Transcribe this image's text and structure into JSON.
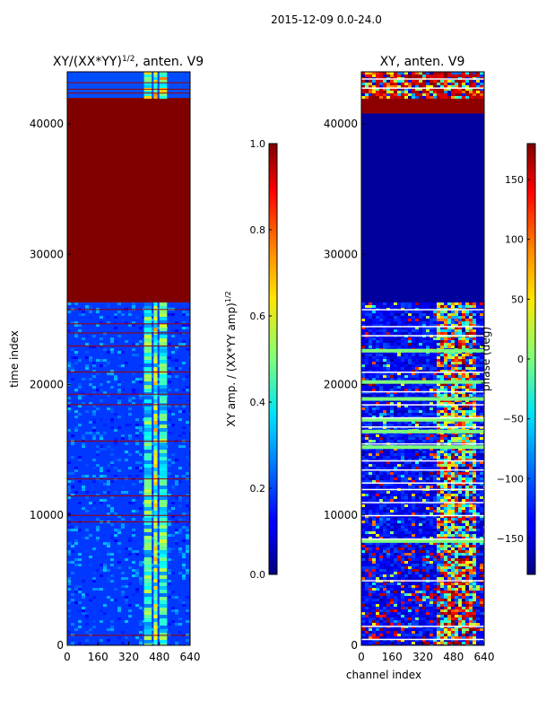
{
  "suptitle": "2015-12-09 0.0-24.0",
  "chart_data": [
    {
      "type": "heatmap",
      "title": "XY/(XX*YY)",
      "title_exponent": "1/2",
      "title_suffix": ", anten. V9",
      "xlabel": "",
      "ylabel": "time index",
      "xlim": [
        0,
        640
      ],
      "ylim": [
        0,
        44000
      ],
      "xticks": [
        0,
        160,
        320,
        480,
        640
      ],
      "yticks": [
        0,
        10000,
        20000,
        30000,
        40000
      ],
      "colormap": "jet",
      "colorbar": {
        "label": "XY amp. / (XX*YY amp)",
        "label_exponent": "1/2",
        "range": [
          0.0,
          1.0
        ],
        "ticks": [
          0.0,
          0.2,
          0.4,
          0.6,
          0.8,
          1.0
        ],
        "tick_labels": [
          "0.0",
          "0.2",
          "0.4",
          "0.6",
          "0.8",
          "1.0"
        ]
      },
      "bands": [
        {
          "y0": 0,
          "y1": 26300,
          "value": 0.18
        },
        {
          "y0": 26300,
          "y1": 42000,
          "value": 1.0
        },
        {
          "y0": 42000,
          "y1": 44000,
          "value": 0.2
        }
      ],
      "bright_channels": [
        [
          400,
          440,
          0.45
        ],
        [
          450,
          470,
          0.55
        ],
        [
          480,
          520,
          0.45
        ]
      ],
      "red_rows": [
        800,
        9500,
        10000,
        11500,
        12800,
        15700,
        18500,
        19300,
        21000,
        23000,
        24000,
        24700,
        25800,
        42400,
        42700,
        43200
      ]
    },
    {
      "type": "heatmap",
      "title": "XY, anten. V9",
      "xlabel": "channel index",
      "ylabel": "",
      "xlim": [
        0,
        640
      ],
      "ylim": [
        0,
        44000
      ],
      "xticks": [
        0,
        160,
        320,
        480,
        640
      ],
      "yticks": [
        0,
        10000,
        20000,
        30000,
        40000
      ],
      "colormap": "jet",
      "colorbar": {
        "label": "phase (deg)",
        "range": [
          -180,
          180
        ],
        "ticks": [
          -150,
          -100,
          -50,
          0,
          50,
          100,
          150
        ],
        "tick_labels": [
          "−150",
          "−100",
          "−50",
          "0",
          "50",
          "100",
          "150"
        ]
      },
      "bands": [
        {
          "y0": 0,
          "y1": 26300,
          "value": -120
        },
        {
          "y0": 26300,
          "y1": 40800,
          "value": -170
        },
        {
          "y0": 40800,
          "y1": 42000,
          "value": 175
        },
        {
          "y0": 42000,
          "y1": 44000,
          "value": -40
        }
      ],
      "white_rows": [
        500,
        1500,
        5000,
        8200,
        10000,
        11000,
        12000,
        12500,
        13500,
        14200,
        15500,
        16800,
        17500,
        18500,
        19500,
        21000,
        23800,
        24500,
        25800,
        42800,
        43500
      ],
      "green_rows": [
        8000,
        15200,
        16400,
        17300,
        18900,
        20200,
        22600
      ]
    }
  ]
}
